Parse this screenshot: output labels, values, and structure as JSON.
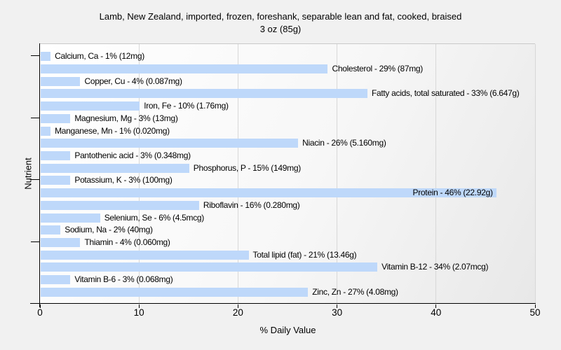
{
  "title": {
    "line1": "Lamb, New Zealand, imported, frozen, foreshank, separable lean and fat, cooked, braised",
    "line2": "3 oz (85g)"
  },
  "chart_data": {
    "type": "bar",
    "orientation": "horizontal",
    "title": "Lamb, New Zealand, imported, frozen, foreshank, separable lean and fat, cooked, braised",
    "subtitle": "3 oz (85g)",
    "xlabel": "% Daily Value",
    "ylabel": "Nutrient",
    "xlim": [
      0,
      50
    ],
    "xticks": [
      0,
      10,
      20,
      30,
      40,
      50
    ],
    "grid": "vertical",
    "bar_color": "#bed8fa",
    "label_format": "{name} - {percent}% ({amount})",
    "items": [
      {
        "name": "Calcium, Ca",
        "percent": 1,
        "amount": "12mg"
      },
      {
        "name": "Cholesterol",
        "percent": 29,
        "amount": "87mg"
      },
      {
        "name": "Copper, Cu",
        "percent": 4,
        "amount": "0.087mg"
      },
      {
        "name": "Fatty acids, total saturated",
        "percent": 33,
        "amount": "6.647g"
      },
      {
        "name": "Iron, Fe",
        "percent": 10,
        "amount": "1.76mg"
      },
      {
        "name": "Magnesium, Mg",
        "percent": 3,
        "amount": "13mg"
      },
      {
        "name": "Manganese, Mn",
        "percent": 1,
        "amount": "0.020mg"
      },
      {
        "name": "Niacin",
        "percent": 26,
        "amount": "5.160mg"
      },
      {
        "name": "Pantothenic acid",
        "percent": 3,
        "amount": "0.348mg"
      },
      {
        "name": "Phosphorus, P",
        "percent": 15,
        "amount": "149mg"
      },
      {
        "name": "Potassium, K",
        "percent": 3,
        "amount": "100mg"
      },
      {
        "name": "Protein",
        "percent": 46,
        "amount": "22.92g"
      },
      {
        "name": "Riboflavin",
        "percent": 16,
        "amount": "0.280mg"
      },
      {
        "name": "Selenium, Se",
        "percent": 6,
        "amount": "4.5mcg"
      },
      {
        "name": "Sodium, Na",
        "percent": 2,
        "amount": "40mg"
      },
      {
        "name": "Thiamin",
        "percent": 4,
        "amount": "0.060mg"
      },
      {
        "name": "Total lipid (fat)",
        "percent": 21,
        "amount": "13.46g"
      },
      {
        "name": "Vitamin B-12",
        "percent": 34,
        "amount": "2.07mcg"
      },
      {
        "name": "Vitamin B-6",
        "percent": 3,
        "amount": "0.068mg"
      },
      {
        "name": "Zinc, Zn",
        "percent": 27,
        "amount": "4.08mg"
      }
    ],
    "y_major_tick_every": 5
  }
}
